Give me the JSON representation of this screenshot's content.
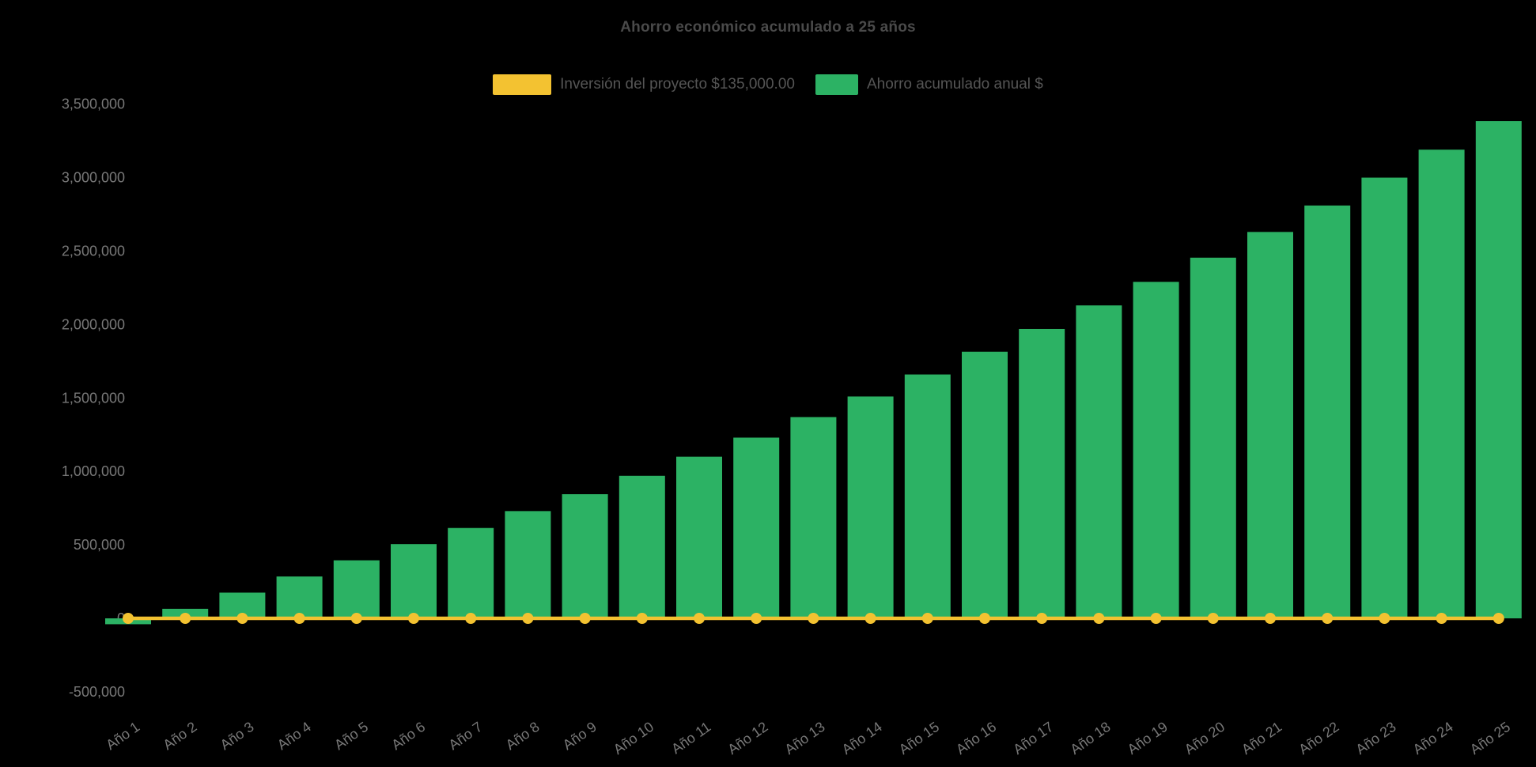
{
  "page": {
    "background_color": "#000000"
  },
  "chart_data": {
    "type": "bar",
    "title": "Ahorro económico acumulado a 25 años",
    "categories": [
      "Año 1",
      "Año 2",
      "Año 3",
      "Año 4",
      "Año 5",
      "Año 6",
      "Año 7",
      "Año 8",
      "Año 9",
      "Año 10",
      "Año 11",
      "Año 12",
      "Año 13",
      "Año 14",
      "Año 15",
      "Año 16",
      "Año 17",
      "Año 18",
      "Año 19",
      "Año 20",
      "Año 21",
      "Año 22",
      "Año 23",
      "Año 24",
      "Año 25"
    ],
    "series": [
      {
        "name": "Inversión del proyecto $135,000.00",
        "type": "line",
        "color": "#F3C231",
        "values": [
          0,
          0,
          0,
          0,
          0,
          0,
          0,
          0,
          0,
          0,
          0,
          0,
          0,
          0,
          0,
          0,
          0,
          0,
          0,
          0,
          0,
          0,
          0,
          0,
          0
        ]
      },
      {
        "name": "Ahorro acumulado anual $",
        "type": "bar",
        "color": "#2CB264",
        "values": [
          -40000,
          65000,
          175000,
          285000,
          395000,
          505000,
          615000,
          730000,
          845000,
          970000,
          1100000,
          1230000,
          1370000,
          1510000,
          1660000,
          1815000,
          1970000,
          2130000,
          2290000,
          2455000,
          2630000,
          2810000,
          3000000,
          3190000,
          3385000
        ]
      }
    ],
    "ylim": [
      -500000,
      3500000
    ],
    "y_ticks": {
      "values": [
        3500000,
        3000000,
        2500000,
        2000000,
        1500000,
        1000000,
        500000,
        0,
        -500000
      ],
      "labels": [
        "3,500,000",
        "3,000,000",
        "2,500,000",
        "2,000,000",
        "1,500,000",
        "1,000,000",
        "500,000",
        "0",
        "-500,000"
      ]
    },
    "grid": false,
    "legend_position": "top"
  }
}
